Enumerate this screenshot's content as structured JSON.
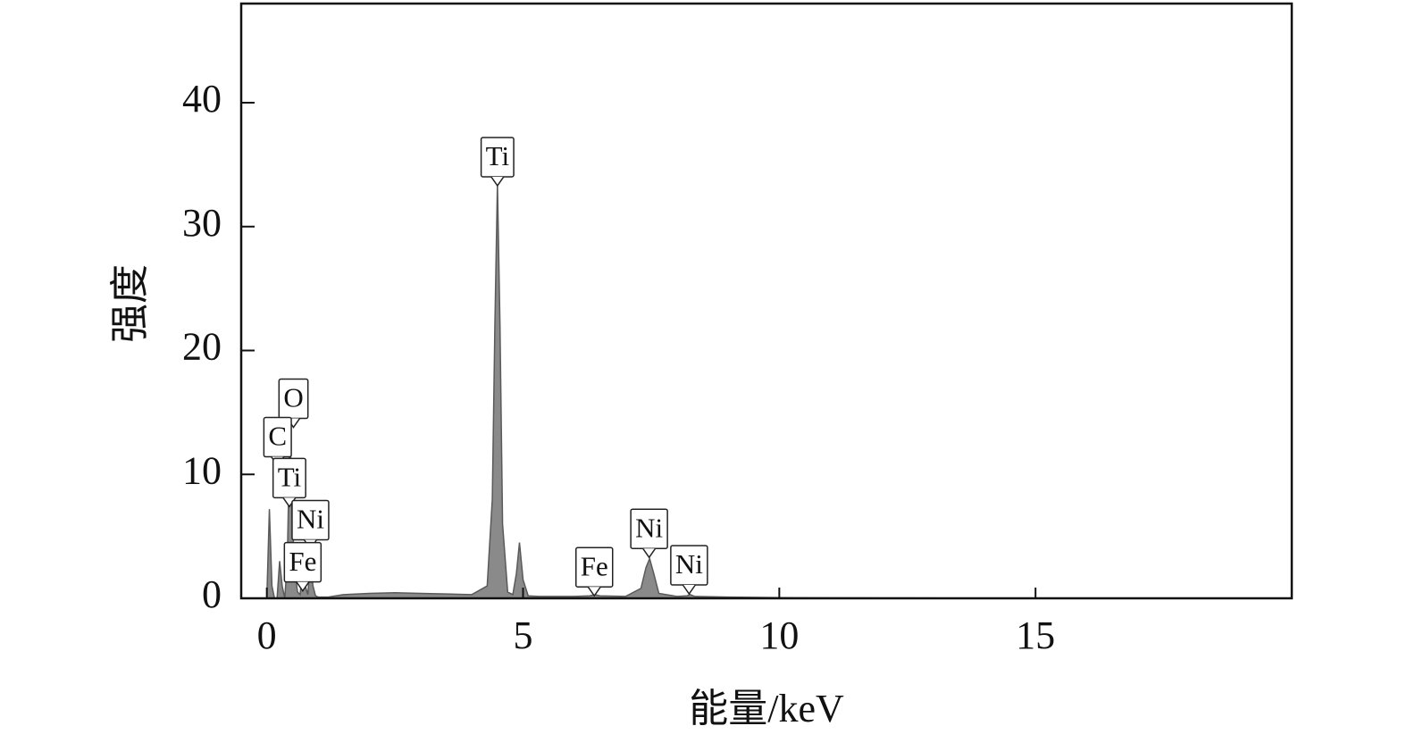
{
  "chart_data": {
    "type": "area",
    "x_label": "能量/keV",
    "y_label": "强度",
    "x": [
      -0.05,
      0,
      0.05,
      0.1,
      0.15,
      0.2,
      0.25,
      0.3,
      0.35,
      0.4,
      0.45,
      0.5,
      0.55,
      0.6,
      0.65,
      0.7,
      0.75,
      0.8,
      0.85,
      0.9,
      0.95,
      1.0,
      1.2,
      1.5,
      2,
      2.5,
      3,
      3.5,
      4,
      4.3,
      4.4,
      4.45,
      4.5,
      4.55,
      4.6,
      4.7,
      4.8,
      4.87,
      4.93,
      5.0,
      5.1,
      5.3,
      6,
      6.3,
      6.4,
      6.5,
      7,
      7.3,
      7.4,
      7.47,
      7.55,
      7.65,
      8,
      8.2,
      8.26,
      8.35,
      9,
      10,
      12,
      15,
      20
    ],
    "values": [
      0,
      0,
      7.2,
      1,
      0,
      0,
      3,
      1,
      0,
      3,
      14,
      6,
      2,
      0.5,
      0.3,
      2.5,
      1,
      0.3,
      3,
      1,
      0.2,
      0.1,
      0.1,
      0.3,
      0.4,
      0.45,
      0.4,
      0.35,
      0.3,
      1,
      8,
      22,
      33.5,
      22,
      6,
      0.5,
      0.3,
      2,
      4.5,
      1.5,
      0.2,
      0.15,
      0.15,
      0.2,
      0.3,
      0.2,
      0.15,
      0.8,
      2.5,
      3.2,
      2,
      0.4,
      0.15,
      0.2,
      0.3,
      0.15,
      0.1,
      0.05,
      0.03,
      0,
      0
    ],
    "color": "#8a8a8a",
    "xlim": [
      -0.5,
      20
    ],
    "ylim": [
      0,
      48
    ],
    "xticks": [
      0,
      5,
      10,
      15
    ],
    "yticks": [
      0,
      10,
      20,
      30,
      40
    ],
    "annotations": [
      {
        "text": "Ti",
        "x": 4.5,
        "y": 33.3
      },
      {
        "text": "O",
        "x": 0.52,
        "y": 13.8
      },
      {
        "text": "C",
        "x": 0.21,
        "y": 10.7
      },
      {
        "text": "Ti",
        "x": 0.44,
        "y": 7.4
      },
      {
        "text": "Ni",
        "x": 0.85,
        "y": 4.0
      },
      {
        "text": "Fe",
        "x": 0.7,
        "y": 0.6
      },
      {
        "text": "Fe",
        "x": 6.39,
        "y": 0.2
      },
      {
        "text": "Ni",
        "x": 7.46,
        "y": 3.3
      },
      {
        "text": "Ni",
        "x": 8.24,
        "y": 0.36
      }
    ]
  }
}
